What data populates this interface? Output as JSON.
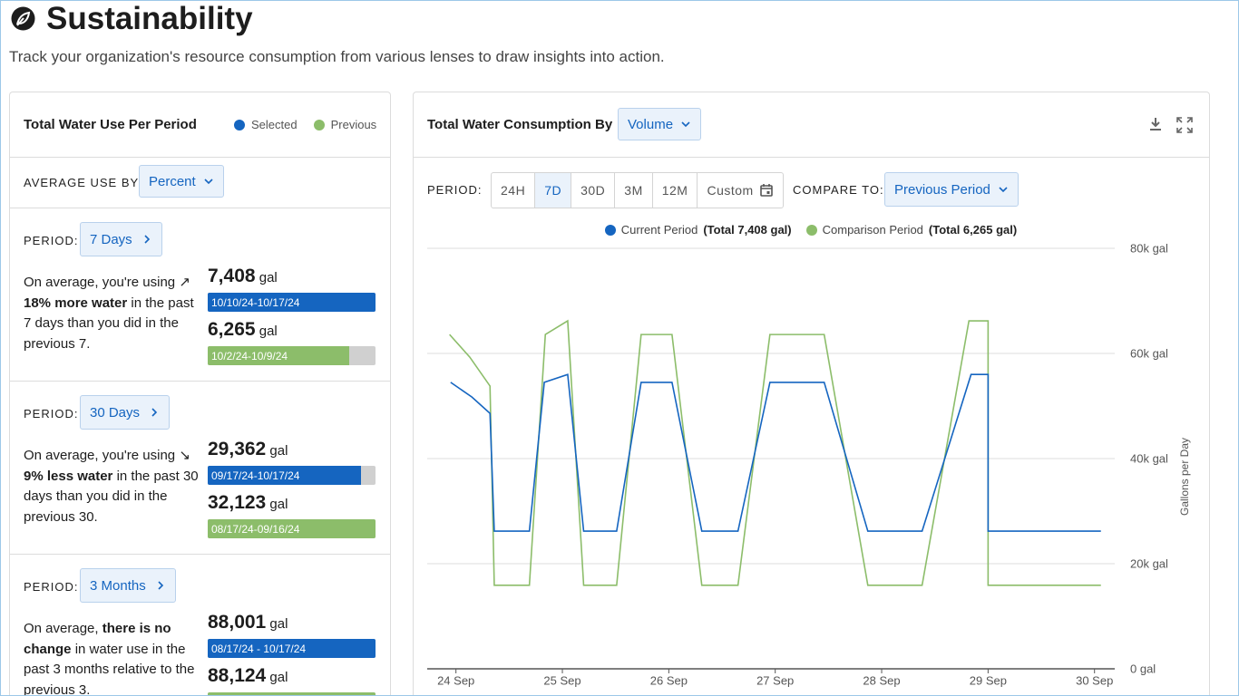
{
  "header": {
    "title": "Sustainability",
    "subtitle": "Track your organization's resource consumption from various lenses to draw insights into action."
  },
  "left_panel": {
    "title": "Total Water Use Per Period",
    "legend": [
      {
        "name": "Selected",
        "color": "#1565c0"
      },
      {
        "name": "Previous",
        "color": "#8cbd6a"
      }
    ],
    "average_label": "AVERAGE USE BY:",
    "average_dropdown": "Percent",
    "cards": [
      {
        "period_label": "PERIOD:",
        "period_button": "7 Days",
        "summary": [
          {
            "text": "On average, you're using"
          },
          {
            "text": "↗"
          },
          {
            "text": "18% more water",
            "bold": true
          },
          {
            "text": "in the past 7 days than you did in the previous 7."
          }
        ],
        "selected": {
          "value": 7408,
          "value_label": "7,408",
          "unit": "gal",
          "range": "10/10/24-10/17/24"
        },
        "previous": {
          "value": 6265,
          "value_label": "6,265",
          "unit": "gal",
          "range": "10/2/24-10/9/24"
        }
      },
      {
        "period_label": "PERIOD:",
        "period_button": "30 Days",
        "summary": [
          {
            "text": "On average, you're using"
          },
          {
            "text": "↘"
          },
          {
            "text": "9% less water",
            "bold": true
          },
          {
            "text": "in the past 30 days than you did in the previous 30."
          }
        ],
        "selected": {
          "value": 29362,
          "value_label": "29,362",
          "unit": "gal",
          "range": "09/17/24-10/17/24"
        },
        "previous": {
          "value": 32123,
          "value_label": "32,123",
          "unit": "gal",
          "range": "08/17/24-09/16/24"
        }
      },
      {
        "period_label": "PERIOD:",
        "period_button": "3 Months",
        "summary": [
          {
            "text": "On average,"
          },
          {
            "text": "there is no change",
            "bold": true
          },
          {
            "text": "in water use in the past 3 months relative to the previous 3."
          }
        ],
        "selected": {
          "value": 88001,
          "value_label": "88,001",
          "unit": "gal",
          "range": "08/17/24 - 10/17/24"
        },
        "previous": {
          "value": 88124,
          "value_label": "88,124",
          "unit": "gal",
          "range": ""
        }
      }
    ]
  },
  "chart_panel": {
    "title": "Total Water Consumption By",
    "dropdown": "Volume",
    "period_label": "PERIOD:",
    "period_buttons": [
      {
        "label": "24H"
      },
      {
        "label": "7D",
        "active": true
      },
      {
        "label": "30D"
      },
      {
        "label": "3M"
      },
      {
        "label": "12M"
      },
      {
        "label": "Custom"
      }
    ],
    "compare_label": "COMPARE TO:",
    "compare_dropdown": "Previous Period"
  },
  "chart_data": {
    "type": "line",
    "y_label": "Gallons per Day",
    "grid": true,
    "xlim": [
      23.73,
      30.19
    ],
    "xticks": [
      {
        "value": 24,
        "label": "24 Sep"
      },
      {
        "value": 25,
        "label": "25 Sep"
      },
      {
        "value": 26,
        "label": "26 Sep"
      },
      {
        "value": 27,
        "label": "27 Sep"
      },
      {
        "value": 28,
        "label": "28 Sep"
      },
      {
        "value": 29,
        "label": "29 Sep"
      },
      {
        "value": 30,
        "label": "30 Sep"
      }
    ],
    "ylim": [
      0,
      80000
    ],
    "yticks": [
      {
        "value": 0,
        "label": "0 gal"
      },
      {
        "value": 20000,
        "label": "20k gal"
      },
      {
        "value": 40000,
        "label": "40k gal"
      },
      {
        "value": 60000,
        "label": "60k gal"
      },
      {
        "value": 80000,
        "label": "80k gal"
      }
    ],
    "series": [
      {
        "name": "Current Period",
        "total_label": "(Total 7,408 gal)",
        "color": "#1565c0",
        "x": [
          23.95,
          24.15,
          24.32,
          24.36,
          24.69,
          24.83,
          25.05,
          25.2,
          25.51,
          25.74,
          26.03,
          26.31,
          26.65,
          26.95,
          27.46,
          27.87,
          28.38,
          28.84,
          29.0,
          29.0,
          30.06
        ],
        "values": [
          54500,
          51700,
          48600,
          26200,
          26200,
          54500,
          56000,
          26200,
          26200,
          54500,
          54500,
          26200,
          26200,
          54500,
          54500,
          26200,
          26200,
          56000,
          56000,
          26200,
          26200
        ]
      },
      {
        "name": "Comparison Period",
        "total_label": "(Total 6,265 gal)",
        "color": "#8cbd6a",
        "x": [
          23.94,
          24.13,
          24.32,
          24.36,
          24.69,
          24.84,
          25.05,
          25.2,
          25.51,
          25.74,
          26.03,
          26.31,
          26.65,
          26.95,
          27.46,
          27.87,
          28.38,
          28.82,
          29.0,
          29.0,
          30.06
        ],
        "values": [
          63600,
          59300,
          53800,
          15900,
          15900,
          63600,
          66200,
          15900,
          15900,
          63600,
          63600,
          15900,
          15900,
          63600,
          63600,
          15900,
          15900,
          66200,
          66200,
          15900,
          15900
        ]
      }
    ]
  }
}
